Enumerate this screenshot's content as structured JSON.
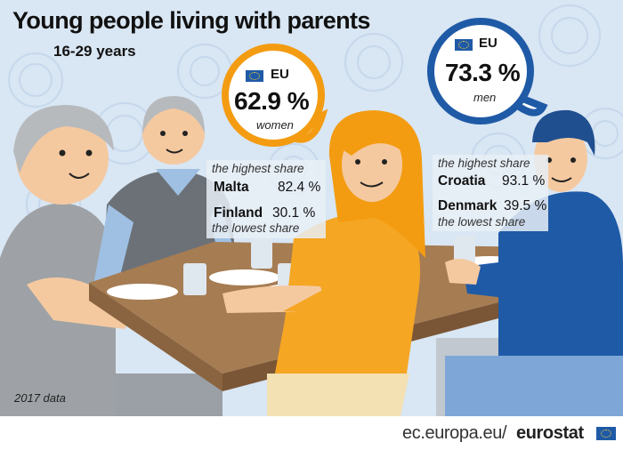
{
  "title": "Young people living with parents",
  "subtitle": "16-29 years",
  "women": {
    "region": "EU",
    "value": "62.9 %",
    "label": "women",
    "highest_label": "the highest share",
    "highest_country": "Malta",
    "highest_value": "82.4 %",
    "lowest_country": "Finland",
    "lowest_value": "30.1 %",
    "lowest_label": "the lowest share"
  },
  "men": {
    "region": "EU",
    "value": "73.3 %",
    "label": "men",
    "highest_label": "the highest share",
    "highest_country": "Croatia",
    "highest_value": "93.1 %",
    "lowest_country": "Denmark",
    "lowest_value": "39.5 %",
    "lowest_label": "the lowest share"
  },
  "footnote": "2017 data",
  "source": {
    "prefix": "ec.europa.eu/",
    "brand": "eurostat"
  },
  "colors": {
    "women_accent": "#f39c12",
    "men_accent": "#1f5aa6",
    "background": "#d9e6f3"
  },
  "icons": [
    "eu-flag-icon"
  ]
}
